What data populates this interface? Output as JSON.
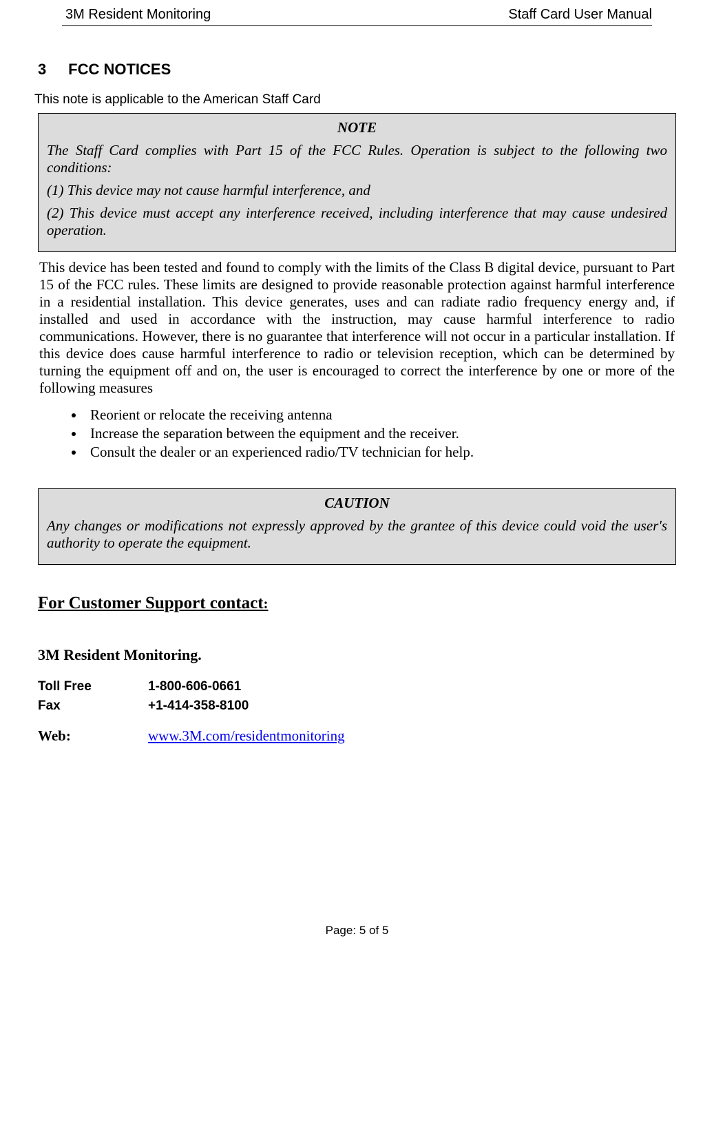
{
  "header": {
    "left": "3M Resident Monitoring",
    "right": "Staff Card User Manual"
  },
  "section": {
    "number": "3",
    "title": "FCC NOTICES"
  },
  "intro": "This note is applicable to the American Staff Card",
  "note": {
    "title": "NOTE",
    "p1": "The Staff Card complies with Part 15 of the FCC Rules. Operation is subject to the following two conditions:",
    "p2": "(1) This device may not cause harmful interference, and",
    "p3": "(2) This device must accept any interference received, including interference that may cause undesired operation."
  },
  "body": "This device has been tested and found to comply with the limits of the Class B digital device, pursuant to Part 15 of the FCC rules. These limits are designed to provide reasonable protection against harmful interference in a residential installation. This device generates, uses and can radiate radio frequency energy and, if installed and used in accordance with the instruction, may cause harmful interference to radio communications. However, there is no guarantee that interference will not occur in a particular installation. If this device does cause harmful interference to radio or television reception, which can be determined by turning the equipment off and on, the user is encouraged to correct the interference by one or more of the following measures",
  "measures": [
    "Reorient or relocate the receiving antenna",
    "Increase the separation between the equipment and the receiver.",
    "Consult the dealer or an experienced radio/TV technician for help."
  ],
  "caution": {
    "title": "CAUTION",
    "p1": "Any changes or modifications not expressly approved by the grantee of this device could void the user's authority to operate the equipment."
  },
  "support": {
    "heading": "For Customer Support contact",
    "company": "3M Resident Monitoring.",
    "rows": [
      {
        "label": "Toll Free",
        "value": "1-800-606-0661"
      },
      {
        "label": "Fax",
        "value": "+1-414-358-8100"
      }
    ],
    "web": {
      "label": "Web:",
      "url": "www.3M.com/residentmonitoring"
    }
  },
  "footer": {
    "label": "Page:",
    "page": "5 of 5"
  },
  "colors": {
    "box_bg": "#dcdcdc",
    "border": "#000000",
    "link": "#0000ee",
    "text": "#000000",
    "background": "#ffffff"
  }
}
